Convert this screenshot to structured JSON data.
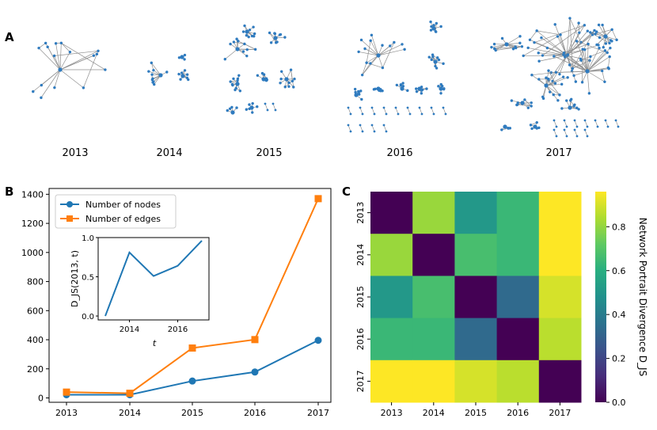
{
  "panels": {
    "a": "A",
    "b": "B",
    "c": "C"
  },
  "networks": {
    "years": [
      "2013",
      "2014",
      "2015",
      "2016",
      "2017"
    ],
    "node_color": "#2f7bbf",
    "edge_color": "#8f8f8f"
  },
  "chart_data": [
    {
      "type": "line",
      "panel": "B",
      "categories": [
        "2013",
        "2014",
        "2015",
        "2016",
        "2017"
      ],
      "series": [
        {
          "name": "Number of nodes",
          "values": [
            22,
            22,
            116,
            178,
            396
          ],
          "color": "#1f77b4",
          "marker": "circle"
        },
        {
          "name": "Number of edges",
          "values": [
            40,
            32,
            343,
            401,
            1370
          ],
          "color": "#ff7f0e",
          "marker": "square"
        }
      ],
      "ylim": [
        -30,
        1440
      ],
      "yticks": [
        "0",
        "200",
        "400",
        "600",
        "800",
        "1000",
        "1200",
        "1400"
      ],
      "legend": "top-left",
      "inset": {
        "type": "line",
        "x": [
          2013,
          2014,
          2015,
          2016,
          2017
        ],
        "y": [
          0.0,
          0.81,
          0.51,
          0.64,
          0.96
        ],
        "xticks": [
          "2014",
          "2016"
        ],
        "yticks": [
          "0.0",
          "0.5",
          "1.0"
        ],
        "xlabel": "t",
        "ylabel": "D_JS(2013, t)",
        "color": "#1f77b4"
      }
    },
    {
      "type": "heatmap",
      "panel": "C",
      "rows": [
        "2013",
        "2014",
        "2015",
        "2016",
        "2017"
      ],
      "cols": [
        "2013",
        "2014",
        "2015",
        "2016",
        "2017"
      ],
      "values": [
        [
          0.0,
          0.81,
          0.51,
          0.64,
          0.96
        ],
        [
          0.81,
          0.0,
          0.67,
          0.64,
          0.96
        ],
        [
          0.51,
          0.67,
          0.0,
          0.33,
          0.9
        ],
        [
          0.64,
          0.64,
          0.33,
          0.0,
          0.86
        ],
        [
          0.96,
          0.96,
          0.9,
          0.86,
          0.0
        ]
      ],
      "colorbar": {
        "label": "Network Portrait Divergence D_JS",
        "ticks": [
          "0.0",
          "0.2",
          "0.4",
          "0.6",
          "0.8"
        ],
        "range": [
          0.0,
          0.96
        ]
      },
      "colormap": "viridis"
    }
  ]
}
